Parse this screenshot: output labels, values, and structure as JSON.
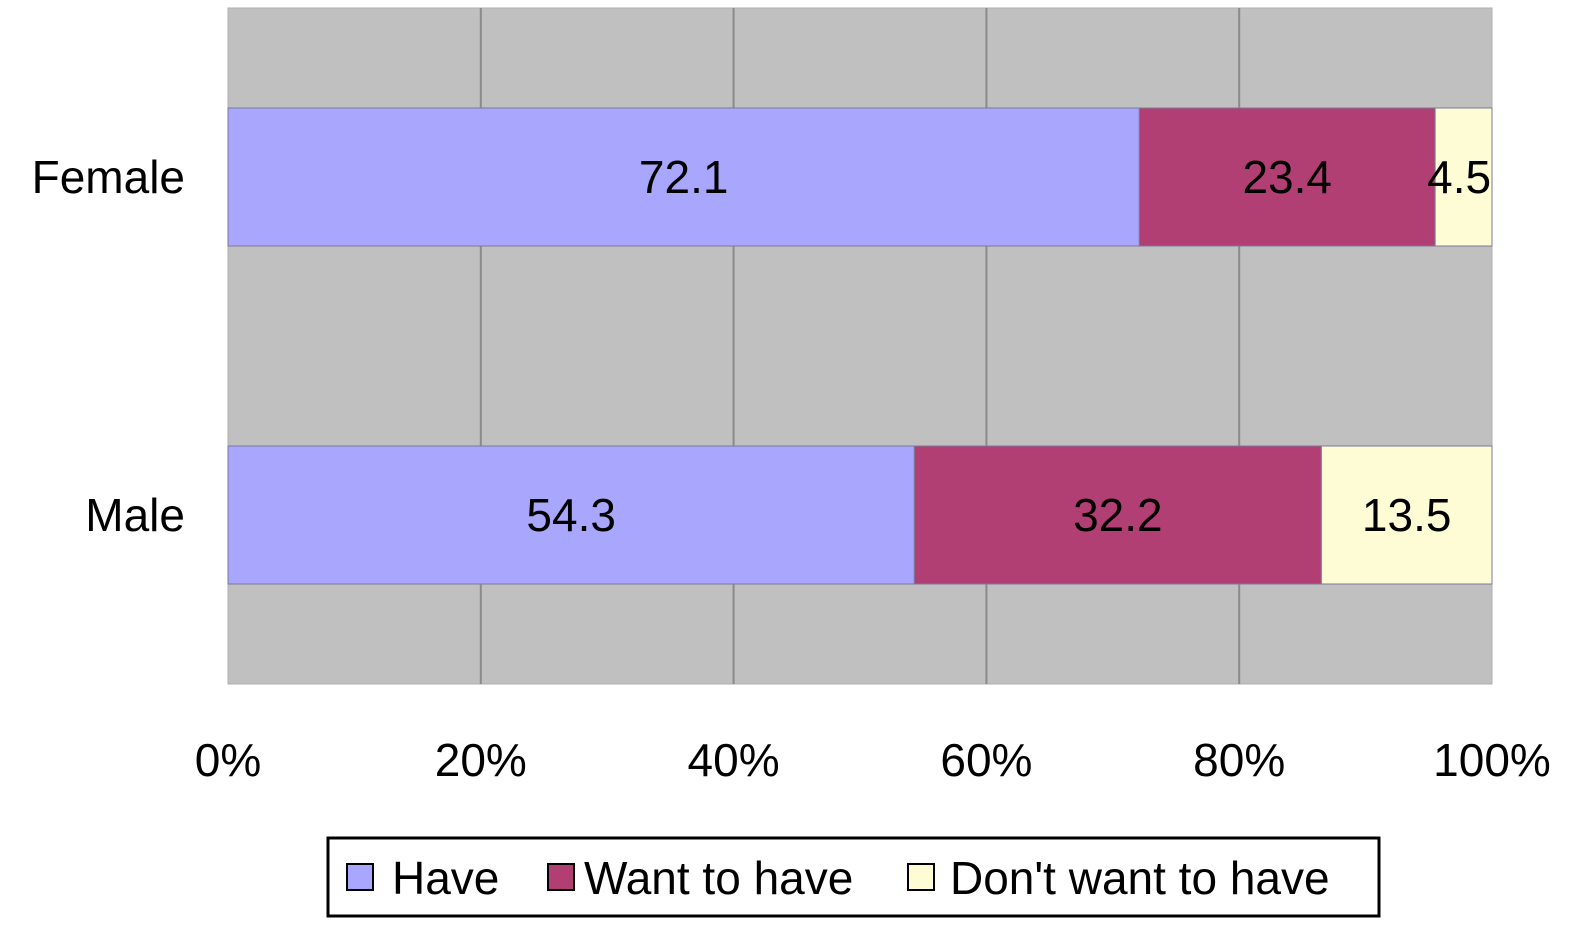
{
  "chart_data": {
    "type": "bar",
    "orientation": "horizontal",
    "stacked": "percent",
    "categories": [
      "Female",
      "Male"
    ],
    "series": [
      {
        "name": "Have",
        "values": [
          72.1,
          54.3
        ]
      },
      {
        "name": "Want to have",
        "values": [
          23.4,
          32.2
        ]
      },
      {
        "name": "Don't want to have",
        "values": [
          4.5,
          13.5
        ]
      }
    ],
    "xlim": [
      0,
      100
    ],
    "x_ticks": [
      0,
      20,
      40,
      60,
      80,
      100
    ],
    "x_tick_labels": [
      "0%",
      "20%",
      "40%",
      "60%",
      "80%",
      "100%"
    ],
    "grid": true,
    "legend_position": "bottom",
    "colors": {
      "plot_background": "#c0c0c0",
      "gridline": "#8a8a8a",
      "series": [
        "#a9a6fd",
        "#b23f73",
        "#fdfcd5"
      ]
    }
  }
}
